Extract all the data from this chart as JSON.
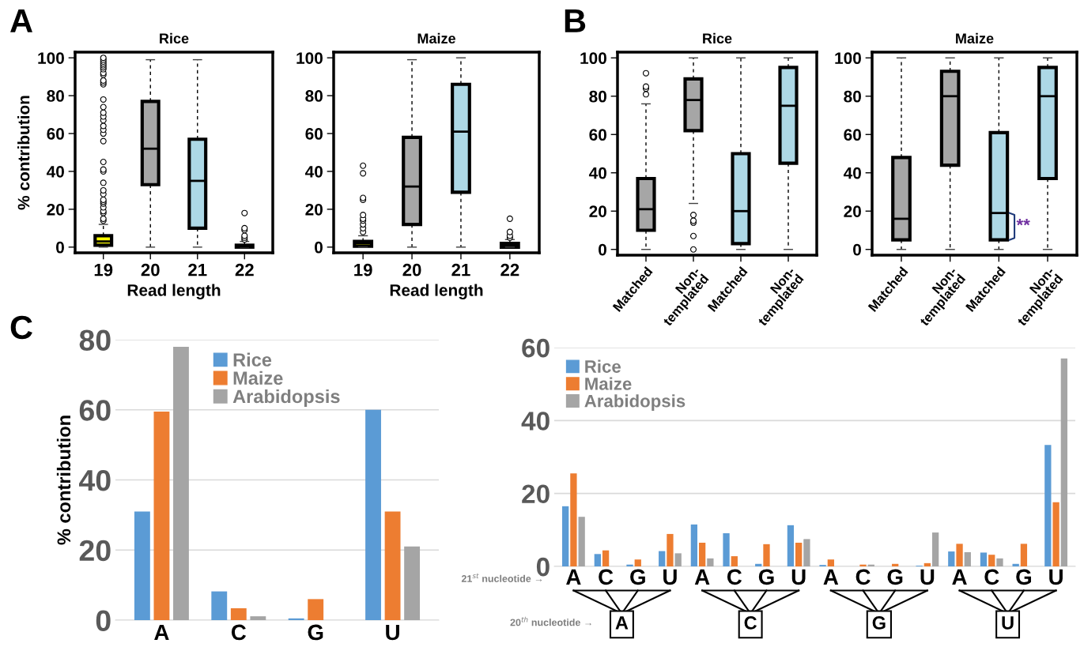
{
  "chart_data": [
    {
      "type": "box",
      "title": "Rice",
      "xlabel": "Read length",
      "ylabel": "% contribution",
      "annotations": [
        "A"
      ],
      "categories": [
        "19",
        "20",
        "21",
        "22"
      ],
      "colors": [
        "#ffff00",
        "#a6a6a6",
        "#add8e6",
        "#1a1a1a"
      ],
      "ylim": [
        -3,
        103
      ],
      "yticks": [
        0,
        20,
        40,
        60,
        80,
        100
      ],
      "boxes": [
        {
          "low": 0,
          "q1": 1,
          "median": 3,
          "q3": 6,
          "high": 12,
          "outliers": [
            14,
            15,
            18,
            19,
            21,
            23,
            24,
            25,
            28,
            30,
            34,
            40,
            41,
            45,
            56,
            60,
            62,
            64,
            67,
            69,
            71,
            74,
            78,
            86,
            87,
            88,
            91,
            92,
            94,
            95,
            96,
            97,
            98,
            99,
            100
          ]
        },
        {
          "low": 0,
          "q1": 33,
          "median": 52,
          "q3": 77,
          "high": 99
        },
        {
          "low": 0,
          "q1": 10,
          "median": 35,
          "q3": 57,
          "high": 99
        },
        {
          "low": 0,
          "q1": 0,
          "median": 0.5,
          "q3": 1,
          "high": 3,
          "outliers": [
            4,
            5,
            6,
            9,
            10,
            18
          ]
        }
      ]
    },
    {
      "type": "box",
      "title": "Maize",
      "xlabel": "Read length",
      "categories": [
        "19",
        "20",
        "21",
        "22"
      ],
      "colors": [
        "#ffff00",
        "#a6a6a6",
        "#add8e6",
        "#1a1a1a"
      ],
      "ylim": [
        -3,
        103
      ],
      "yticks": [
        0,
        20,
        40,
        60,
        80,
        100
      ],
      "boxes": [
        {
          "low": 0,
          "q1": 0.5,
          "median": 2,
          "q3": 3,
          "high": 6,
          "outliers": [
            8,
            10,
            12,
            14,
            15,
            17,
            25,
            26,
            39,
            43
          ]
        },
        {
          "low": 0,
          "q1": 12,
          "median": 32,
          "q3": 58,
          "high": 99
        },
        {
          "low": 0,
          "q1": 29,
          "median": 61,
          "q3": 86,
          "high": 100
        },
        {
          "low": 0,
          "q1": 0,
          "median": 1,
          "q3": 2,
          "high": 4,
          "outliers": [
            5,
            6,
            8,
            15
          ]
        }
      ]
    },
    {
      "type": "box",
      "title": "Rice",
      "annotations": [
        "B"
      ],
      "categories": [
        "Matched",
        "Non-\ntemplated",
        "Matched",
        "Non-\ntemplated"
      ],
      "colors": [
        "#a6a6a6",
        "#a6a6a6",
        "#add8e6",
        "#add8e6"
      ],
      "ylim": [
        -3,
        103
      ],
      "yticks": [
        0,
        20,
        40,
        60,
        80,
        100
      ],
      "boxes": [
        {
          "low": 0,
          "q1": 10,
          "median": 21,
          "q3": 37,
          "high": 76,
          "outliers": [
            81,
            84,
            85,
            92
          ]
        },
        {
          "low": 24,
          "q1": 62,
          "median": 78,
          "q3": 89,
          "high": 100,
          "outliers": [
            0,
            7,
            14,
            15,
            18
          ]
        },
        {
          "low": 0,
          "q1": 3,
          "median": 20,
          "q3": 50,
          "high": 100
        },
        {
          "low": 0,
          "q1": 45,
          "median": 75,
          "q3": 95,
          "high": 100
        }
      ]
    },
    {
      "type": "box",
      "title": "Maize",
      "annotations": [
        "**"
      ],
      "categories": [
        "Matched",
        "Non-\ntemplated",
        "Matched",
        "Non-\ntemplated"
      ],
      "colors": [
        "#a6a6a6",
        "#a6a6a6",
        "#add8e6",
        "#add8e6"
      ],
      "ylim": [
        -3,
        103
      ],
      "yticks": [
        0,
        20,
        40,
        60,
        80,
        100
      ],
      "boxes": [
        {
          "low": 0,
          "q1": 5,
          "median": 16,
          "q3": 48,
          "high": 100
        },
        {
          "low": 0,
          "q1": 44,
          "median": 80,
          "q3": 93,
          "high": 100
        },
        {
          "low": 0,
          "q1": 5,
          "median": 19,
          "q3": 61,
          "high": 100
        },
        {
          "low": 0,
          "q1": 37,
          "median": 80,
          "q3": 95,
          "high": 100
        }
      ]
    },
    {
      "type": "bar",
      "ylabel": "% contribution",
      "annotations": [
        "C"
      ],
      "categories": [
        "A",
        "C",
        "G",
        "U"
      ],
      "ylim": [
        0,
        80
      ],
      "yticks": [
        0,
        20,
        40,
        60,
        80
      ],
      "grid": "y",
      "legend": "top center",
      "series": [
        {
          "name": "Rice",
          "color": "#5b9bd5",
          "values": [
            31,
            8.2,
            0.5,
            60
          ]
        },
        {
          "name": "Maize",
          "color": "#ed7d31",
          "values": [
            59.5,
            3.4,
            6,
            31
          ]
        },
        {
          "name": "Arabidopsis",
          "color": "#a5a5a5",
          "values": [
            78,
            1.1,
            0,
            21
          ]
        }
      ]
    },
    {
      "type": "bar",
      "annotations": [
        "21$^{st}$ nucleotide →",
        "20$^{th}$ nucleotide →",
        "A",
        "C",
        "G",
        "U"
      ],
      "categories": [
        "A",
        "C",
        "G",
        "U",
        "A",
        "C",
        "G",
        "U",
        "A",
        "C",
        "G",
        "U",
        "A",
        "C",
        "G",
        "U"
      ],
      "ylim": [
        0,
        60
      ],
      "yticks": [
        0,
        20,
        40,
        60
      ],
      "grid": "y",
      "legend": "top left",
      "series": [
        {
          "name": "Rice",
          "color": "#5b9bd5",
          "values": [
            16.5,
            3.4,
            0.5,
            4.2,
            11.5,
            9.1,
            0.7,
            11.3,
            0.4,
            null,
            null,
            0.2,
            4.1,
            3.8,
            0.7,
            33.3
          ]
        },
        {
          "name": "Maize",
          "color": "#ed7d31",
          "values": [
            25.5,
            4.4,
            1.9,
            8.9,
            6.5,
            2.8,
            6.1,
            6.5,
            1.9,
            0.5,
            0.7,
            0.9,
            6.2,
            3.2,
            6.2,
            17.6
          ]
        },
        {
          "name": "Arabidopsis",
          "color": "#a5a5a5",
          "values": [
            13.6,
            null,
            0,
            3.6,
            2.2,
            0,
            0,
            7.5,
            0,
            0.5,
            0,
            9.3,
            3.9,
            2.2,
            0,
            57
          ]
        }
      ]
    }
  ]
}
